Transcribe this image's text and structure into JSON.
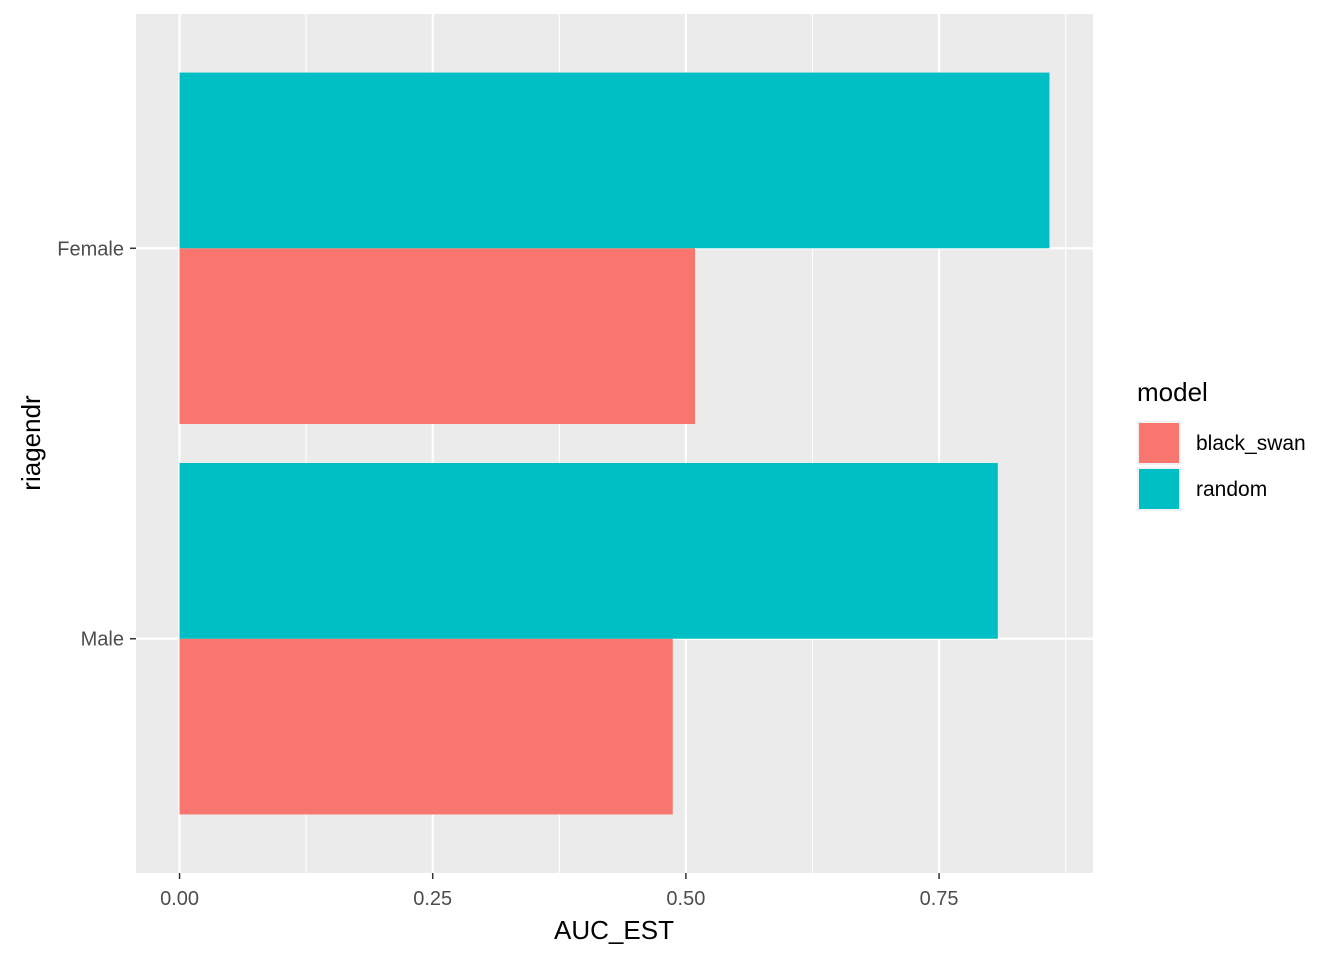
{
  "chart_data": {
    "type": "bar",
    "orientation": "horizontal",
    "position": "dodge",
    "xlabel": "AUC_EST",
    "ylabel": "riagendr",
    "categories": [
      "Male",
      "Female"
    ],
    "series": [
      {
        "name": "black_swan",
        "color": "#F8766D",
        "values": [
          0.487,
          0.509
        ]
      },
      {
        "name": "random",
        "color": "#00BFC4",
        "values": [
          0.808,
          0.859
        ]
      }
    ],
    "xlim": [
      -0.043,
      0.902
    ],
    "x_ticks": [
      {
        "value": 0.0,
        "label": "0.00"
      },
      {
        "value": 0.25,
        "label": "0.25"
      },
      {
        "value": 0.5,
        "label": "0.50"
      },
      {
        "value": 0.75,
        "label": "0.75"
      }
    ],
    "x_minor_ticks": [
      0.125,
      0.375,
      0.625,
      0.875
    ],
    "grid": true,
    "panel_background": "#EBEBEB",
    "grid_color": "#FFFFFF",
    "legend": {
      "title": "model",
      "position": "right"
    }
  }
}
